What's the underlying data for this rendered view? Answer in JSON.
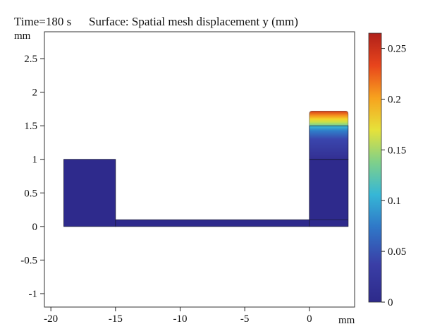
{
  "header": {
    "time_label": "Time=180 s",
    "surface_label": "Surface: Spatial mesh displacement y (mm)"
  },
  "chart_data": {
    "type": "heatmap",
    "title": "Surface: Spatial mesh displacement y (mm)",
    "time": "Time=180 s",
    "x_unit": "mm",
    "y_unit": "mm",
    "xlim": [
      -20.5,
      3.5
    ],
    "ylim": [
      -1.2,
      2.9
    ],
    "x_ticks": [
      -20,
      -15,
      -10,
      -5,
      0
    ],
    "x_tick_labels": [
      "-20",
      "-15",
      "-10",
      "-5",
      "0"
    ],
    "y_ticks": [
      -1,
      -0.5,
      0,
      0.5,
      1,
      1.5,
      2,
      2.5
    ],
    "y_tick_labels": [
      "-1",
      "-0.5",
      "0",
      "0.5",
      "1",
      "1.5",
      "2",
      "2.5"
    ],
    "colorbar": {
      "min": 0,
      "max": 0.265,
      "ticks": [
        0,
        0.05,
        0.1,
        0.15,
        0.2,
        0.25
      ],
      "tick_labels": [
        "0",
        "0.05",
        "0.1",
        "0.15",
        "0.2",
        "0.25"
      ],
      "colors": [
        "#2d2a8a",
        "#3a3ea6",
        "#2f78c8",
        "#36b7d6",
        "#7fd08a",
        "#e6e23a",
        "#f7a21e",
        "#e8451c",
        "#b0201a"
      ]
    },
    "regions": [
      {
        "name": "left-block",
        "x": [
          -19,
          -15
        ],
        "y": [
          0,
          1
        ],
        "value": 0
      },
      {
        "name": "bottom-channel",
        "x": [
          -15,
          0
        ],
        "y": [
          0,
          0.1
        ],
        "value": 0
      },
      {
        "name": "right-column-base",
        "x": [
          0,
          3
        ],
        "y": [
          0,
          1
        ],
        "value": 0.005
      },
      {
        "name": "right-column-upper",
        "x": [
          0,
          3
        ],
        "y": [
          1,
          1.5
        ],
        "value_bottom": 0.01,
        "value_top": 0.1
      },
      {
        "name": "right-column-deformed-top",
        "x": [
          0,
          3
        ],
        "y": [
          1.5,
          1.72
        ],
        "value_bottom": 0.13,
        "value_top": 0.265
      }
    ],
    "internal_lines_y": [
      0.1,
      1,
      1.5
    ]
  }
}
